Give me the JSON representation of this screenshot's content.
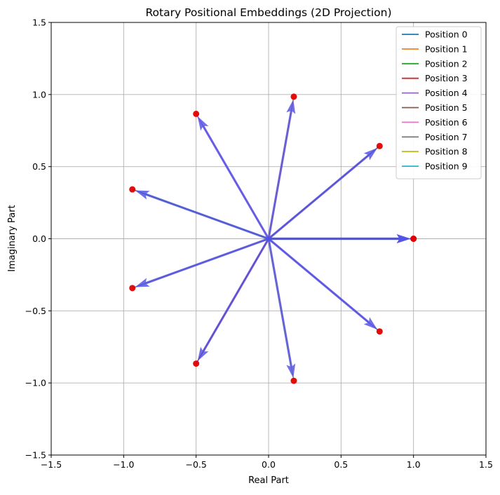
{
  "chart_data": {
    "type": "scatter",
    "title": "Rotary Positional Embeddings (2D Projection)",
    "xlabel": "Real Part",
    "ylabel": "Imaginary Part",
    "xlim": [
      -1.5,
      1.5
    ],
    "ylim": [
      -1.5,
      1.5
    ],
    "grid": true,
    "legend_position": "top-right",
    "xticks": [
      -1.5,
      -1.0,
      -0.5,
      0.0,
      0.5,
      1.0,
      1.5
    ],
    "yticks": [
      -1.5,
      -1.0,
      -0.5,
      0.0,
      0.5,
      1.0,
      1.5
    ],
    "xtick_labels": [
      "−1.5",
      "−1.0",
      "−0.5",
      "0.0",
      "0.5",
      "1.0",
      "1.5"
    ],
    "ytick_labels": [
      "−1.5",
      "−1.0",
      "−0.5",
      "0.0",
      "0.5",
      "1.0",
      "1.5"
    ],
    "arrow_color": "#4f4fe6",
    "point_color": "#e00000",
    "grid_color": "#b0b0b0",
    "points": [
      {
        "x": 1.0,
        "y": 0.0
      },
      {
        "x": 0.174,
        "y": 0.985
      },
      {
        "x": -0.94,
        "y": 0.342
      },
      {
        "x": -0.5,
        "y": -0.866
      },
      {
        "x": 0.766,
        "y": -0.643
      },
      {
        "x": 0.766,
        "y": 0.643
      },
      {
        "x": -0.5,
        "y": 0.866
      },
      {
        "x": -0.94,
        "y": -0.342
      },
      {
        "x": 0.174,
        "y": -0.985
      },
      {
        "x": 1.0,
        "y": 0.0
      }
    ],
    "series": [
      {
        "name": "Position 0",
        "color": "#1f77b4"
      },
      {
        "name": "Position 1",
        "color": "#ff7f0e"
      },
      {
        "name": "Position 2",
        "color": "#2ca02c"
      },
      {
        "name": "Position 3",
        "color": "#d62728"
      },
      {
        "name": "Position 4",
        "color": "#9467bd"
      },
      {
        "name": "Position 5",
        "color": "#8c564b"
      },
      {
        "name": "Position 6",
        "color": "#e377c2"
      },
      {
        "name": "Position 7",
        "color": "#7f7f7f"
      },
      {
        "name": "Position 8",
        "color": "#bcbd22"
      },
      {
        "name": "Position 9",
        "color": "#17becf"
      }
    ]
  }
}
